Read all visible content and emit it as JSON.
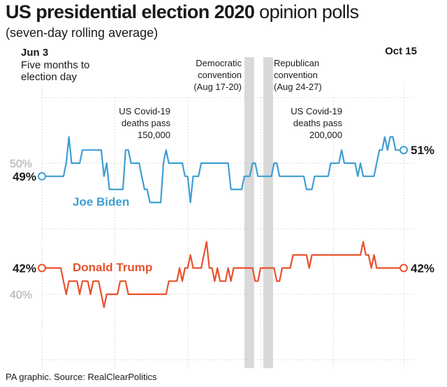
{
  "title_bold": "US presidential election 2020",
  "title_light": "opinion polls",
  "subtitle": "(seven-day rolling average)",
  "source": "PA graphic. Source: RealClearPolitics",
  "colors": {
    "biden": "#3d9fd3",
    "trump": "#e8512d",
    "band": "#d9d9d9",
    "grid": "#cfcfcf",
    "tick_label": "#a9a9a9"
  },
  "annotations": {
    "start_date": "Jun 3",
    "start_note": [
      "Five months to",
      "election day"
    ],
    "end_date": "Oct 15",
    "dem_convention": [
      "Democratic",
      "convention",
      "(Aug 17-20)"
    ],
    "rep_convention": [
      "Republican",
      "convention",
      "(Aug 24-27)"
    ],
    "covid150": [
      "US Covid-19",
      "deaths pass",
      "150,000"
    ],
    "covid200": [
      "US Covid-19",
      "deaths pass",
      "200,000"
    ]
  },
  "chart_data": {
    "type": "line",
    "x_start": "Jun 3",
    "x_end": "Oct 15",
    "n_points": 135,
    "ylim": [
      35,
      55
    ],
    "y_ticks": [
      {
        "value": 50,
        "label": "50%"
      },
      {
        "value": 40,
        "label": "40%"
      }
    ],
    "series": [
      {
        "name": "Joe Biden",
        "color": "#3d9fd3",
        "start_label": "49%",
        "end_label": "51%",
        "values": [
          49,
          49,
          49,
          49,
          49,
          49,
          49,
          49,
          49,
          50,
          52,
          50,
          50,
          50,
          50,
          51,
          51,
          51,
          51,
          51,
          51,
          51,
          51,
          49,
          50,
          48,
          48,
          48,
          48,
          48,
          48,
          51,
          51,
          50,
          50,
          50,
          50,
          49,
          48,
          48,
          47,
          47,
          47,
          47,
          47,
          50,
          51,
          50,
          50,
          50,
          50,
          50,
          50,
          49,
          49,
          47,
          49,
          49,
          49,
          50,
          50,
          50,
          50,
          50,
          50,
          50,
          50,
          50,
          50,
          50,
          48,
          48,
          48,
          48,
          48,
          49,
          49,
          49,
          50,
          50,
          49,
          49,
          49,
          49,
          49,
          49,
          50,
          50,
          49,
          49,
          49,
          49,
          49,
          49,
          49,
          49,
          49,
          49,
          48,
          48,
          48,
          49,
          49,
          49,
          49,
          49,
          49,
          50,
          50,
          50,
          50,
          51,
          50,
          50,
          50,
          50,
          50,
          49,
          50,
          49,
          49,
          49,
          49,
          49,
          50,
          51,
          51,
          52,
          51,
          52,
          52,
          51,
          51,
          51,
          51
        ]
      },
      {
        "name": "Donald Trump",
        "color": "#e8512d",
        "start_label": "42%",
        "end_label": "42%",
        "values": [
          42,
          42,
          42,
          42,
          42,
          42,
          42,
          42,
          41,
          40,
          41,
          41,
          41,
          41,
          40,
          41,
          41,
          41,
          40,
          41,
          41,
          41,
          40,
          39,
          40,
          40,
          40,
          40,
          40,
          41,
          41,
          41,
          40,
          40,
          40,
          40,
          40,
          40,
          40,
          40,
          40,
          40,
          40,
          40,
          40,
          40,
          40,
          41,
          41,
          41,
          41,
          42,
          41,
          42,
          42,
          43,
          42,
          42,
          42,
          42,
          43,
          44,
          42,
          42,
          41,
          42,
          41,
          41,
          41,
          42,
          41,
          42,
          42,
          42,
          42,
          42,
          42,
          42,
          42,
          41,
          41,
          42,
          42,
          42,
          42,
          42,
          42,
          41,
          41,
          42,
          42,
          42,
          42,
          43,
          43,
          43,
          43,
          43,
          43,
          42,
          43,
          43,
          43,
          43,
          43,
          43,
          43,
          43,
          43,
          43,
          43,
          43,
          43,
          43,
          43,
          43,
          43,
          43,
          43,
          44,
          43,
          43,
          42,
          43,
          42,
          42,
          42,
          42,
          42,
          42,
          42,
          42,
          42,
          42,
          42
        ]
      }
    ]
  }
}
